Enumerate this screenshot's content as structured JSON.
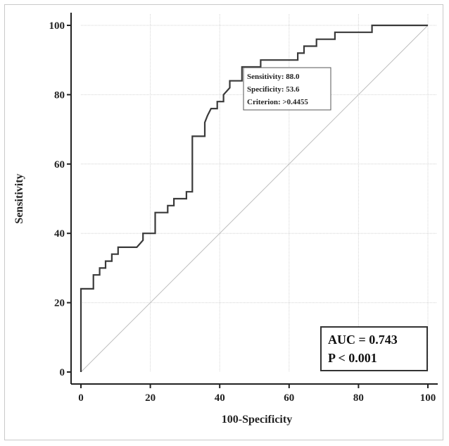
{
  "chart_data": {
    "type": "line",
    "xlabel": "100-Specificity",
    "ylabel": "Sensitivity",
    "xlim": [
      0,
      100
    ],
    "ylim": [
      0,
      100
    ],
    "x_ticks": [
      0,
      20,
      40,
      60,
      80,
      100
    ],
    "y_ticks": [
      0,
      20,
      40,
      60,
      80,
      100
    ],
    "grid": true,
    "series": [
      {
        "type": "roc-step",
        "points": [
          [
            0,
            0
          ],
          [
            0,
            24
          ],
          [
            3.6,
            24
          ],
          [
            3.6,
            28
          ],
          [
            5.4,
            28
          ],
          [
            5.4,
            30
          ],
          [
            7.1,
            30
          ],
          [
            7.1,
            32
          ],
          [
            8.9,
            32
          ],
          [
            8.9,
            34
          ],
          [
            10.7,
            34
          ],
          [
            10.7,
            36
          ],
          [
            16.1,
            36
          ],
          [
            17.9,
            38
          ],
          [
            17.9,
            40
          ],
          [
            21.4,
            40
          ],
          [
            21.4,
            46
          ],
          [
            25,
            46
          ],
          [
            25,
            48
          ],
          [
            26.8,
            48
          ],
          [
            26.8,
            50
          ],
          [
            30.4,
            50
          ],
          [
            30.4,
            52
          ],
          [
            32.1,
            52
          ],
          [
            32.1,
            68
          ],
          [
            35.7,
            68
          ],
          [
            35.7,
            72
          ],
          [
            36.5,
            74
          ],
          [
            37.5,
            76
          ],
          [
            39.3,
            76
          ],
          [
            39.3,
            78
          ],
          [
            41.1,
            78
          ],
          [
            41.1,
            80
          ],
          [
            42.9,
            82
          ],
          [
            42.9,
            84
          ],
          [
            46.4,
            84
          ],
          [
            46.4,
            88
          ],
          [
            51.8,
            88
          ],
          [
            51.8,
            90
          ],
          [
            62.5,
            90
          ],
          [
            62.5,
            92
          ],
          [
            64.3,
            92
          ],
          [
            64.3,
            94
          ],
          [
            67.9,
            94
          ],
          [
            67.9,
            96
          ],
          [
            73.2,
            96
          ],
          [
            73.2,
            98
          ],
          [
            83.9,
            98
          ],
          [
            83.9,
            100
          ],
          [
            100,
            100
          ]
        ]
      },
      {
        "type": "reference-diagonal",
        "points": [
          [
            0,
            0
          ],
          [
            100,
            100
          ]
        ]
      }
    ],
    "annotations": {
      "cutoff": {
        "point": [
          46.4,
          88
        ],
        "sensitivity_label": "Sensitivity: 88.0",
        "specificity_label": "Specificity: 53.6",
        "criterion_label": "Criterion: >0.4455"
      },
      "stats": {
        "auc_label": "AUC = 0.743",
        "p_label": "P < 0.001"
      }
    },
    "colors": {
      "curve": "#3a3a3a",
      "diagonal": "#bdbdbd",
      "grid": "#d4d4d4",
      "axis": "#222222"
    }
  }
}
